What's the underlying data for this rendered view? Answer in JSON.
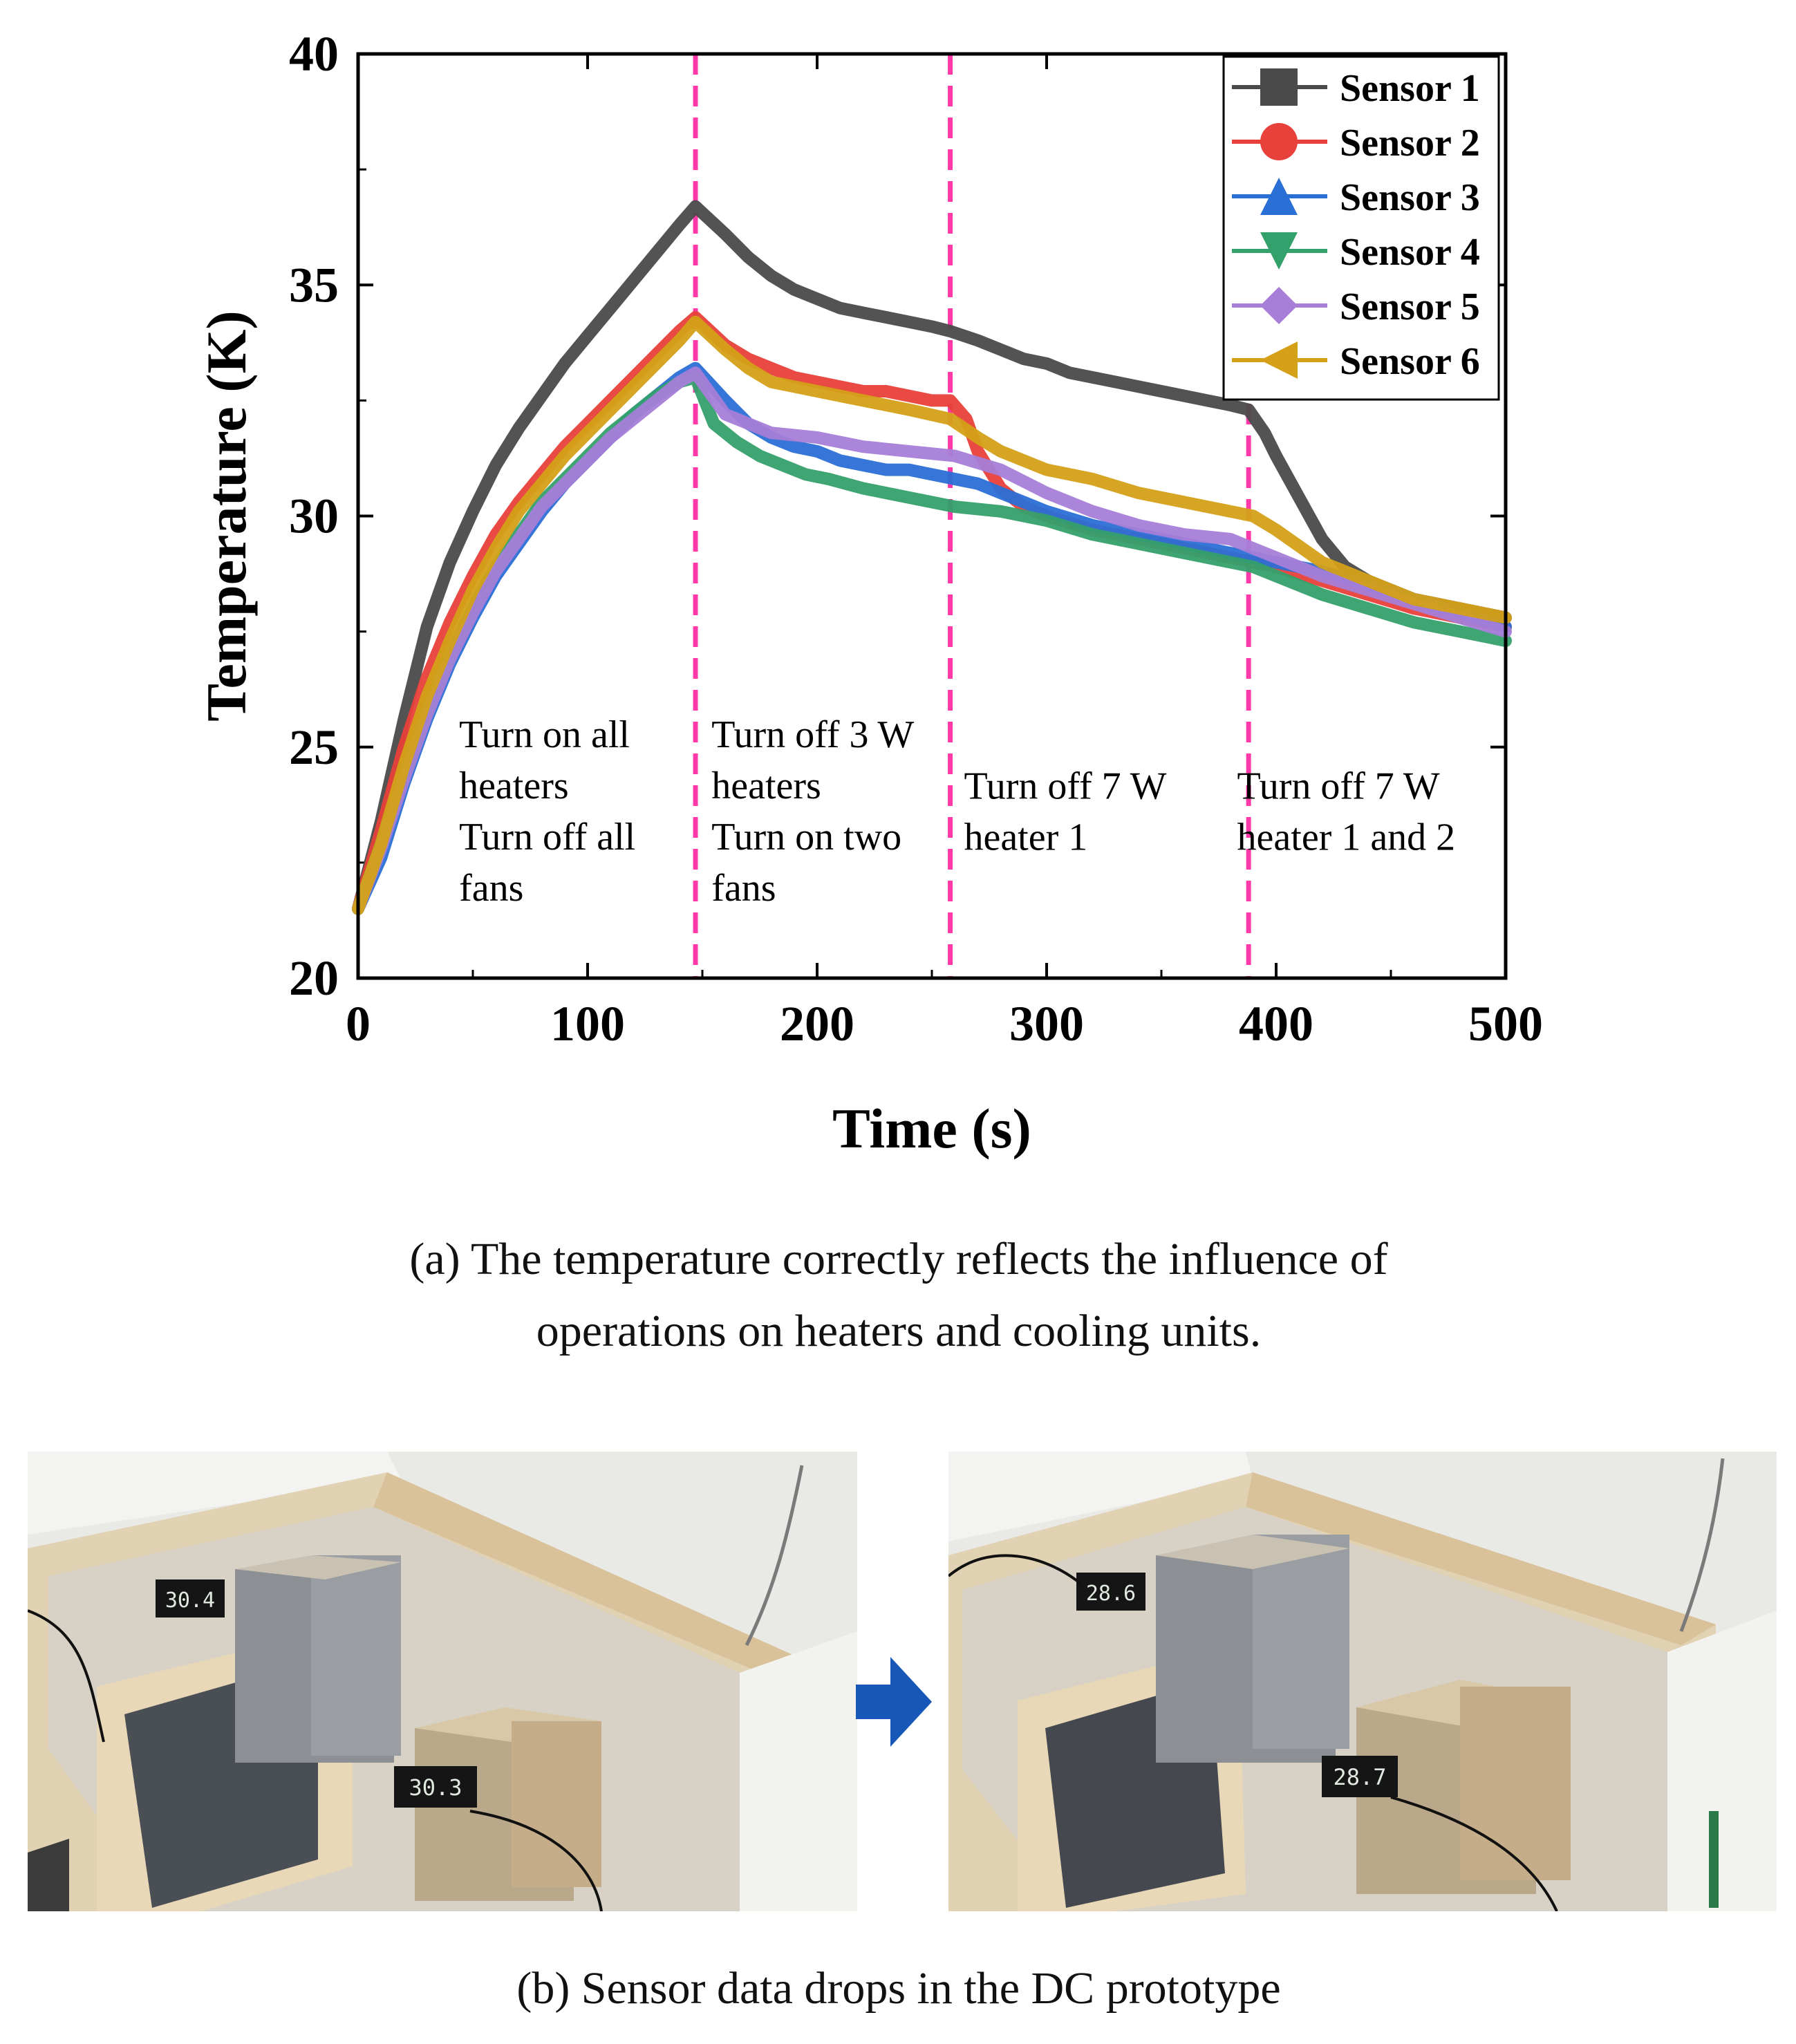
{
  "chart_data": {
    "type": "line",
    "xlabel": "Time (s)",
    "ylabel": "Temperature (K)",
    "xlim": [
      0,
      500
    ],
    "ylim": [
      20,
      40
    ],
    "xticks": [
      0,
      100,
      200,
      300,
      400,
      500
    ],
    "yticks": [
      20,
      25,
      30,
      35,
      40
    ],
    "grid": false,
    "legend_position": "top-right",
    "series": [
      {
        "name": "Sensor 1",
        "color": "#4a4a4a",
        "marker": "square",
        "x": [
          0,
          10,
          20,
          30,
          40,
          50,
          60,
          70,
          80,
          90,
          100,
          110,
          120,
          130,
          140,
          147,
          160,
          170,
          180,
          190,
          200,
          210,
          220,
          230,
          240,
          250,
          258,
          270,
          280,
          290,
          300,
          310,
          320,
          330,
          340,
          350,
          360,
          370,
          380,
          388,
          395,
          400,
          410,
          420,
          430,
          440,
          450,
          460,
          470,
          480,
          490,
          500
        ],
        "y": [
          21.5,
          23.4,
          25.6,
          27.6,
          29.0,
          30.1,
          31.1,
          31.9,
          32.6,
          33.3,
          33.9,
          34.5,
          35.1,
          35.7,
          36.3,
          36.7,
          36.1,
          35.6,
          35.2,
          34.9,
          34.7,
          34.5,
          34.4,
          34.3,
          34.2,
          34.1,
          34.0,
          33.8,
          33.6,
          33.4,
          33.3,
          33.1,
          33.0,
          32.9,
          32.8,
          32.7,
          32.6,
          32.5,
          32.4,
          32.3,
          31.8,
          31.3,
          30.4,
          29.5,
          28.9,
          28.6,
          28.4,
          28.2,
          28.1,
          28.0,
          27.9,
          27.8
        ]
      },
      {
        "name": "Sensor 2",
        "color": "#e8403a",
        "marker": "circle",
        "x": [
          0,
          10,
          20,
          30,
          40,
          50,
          60,
          70,
          80,
          90,
          100,
          110,
          120,
          130,
          140,
          147,
          160,
          170,
          180,
          190,
          200,
          210,
          220,
          230,
          240,
          250,
          258,
          265,
          270,
          280,
          290,
          300,
          320,
          340,
          360,
          380,
          390,
          400,
          420,
          440,
          460,
          480,
          500
        ],
        "y": [
          21.5,
          23.2,
          25.0,
          26.5,
          27.7,
          28.7,
          29.6,
          30.3,
          30.9,
          31.5,
          32.0,
          32.5,
          33.0,
          33.5,
          34.0,
          34.3,
          33.7,
          33.4,
          33.2,
          33.0,
          32.9,
          32.8,
          32.7,
          32.7,
          32.6,
          32.5,
          32.5,
          32.1,
          31.4,
          30.6,
          30.2,
          30.0,
          29.7,
          29.5,
          29.3,
          29.1,
          29.0,
          28.9,
          28.6,
          28.3,
          28.0,
          27.8,
          27.6
        ]
      },
      {
        "name": "Sensor 3",
        "color": "#2a6fd6",
        "marker": "triangle-up",
        "x": [
          0,
          10,
          20,
          30,
          40,
          50,
          60,
          70,
          80,
          90,
          100,
          110,
          120,
          130,
          140,
          147,
          160,
          170,
          180,
          190,
          200,
          210,
          220,
          230,
          240,
          250,
          260,
          270,
          280,
          290,
          300,
          320,
          340,
          360,
          380,
          390,
          400,
          420,
          440,
          460,
          480,
          500
        ],
        "y": [
          21.5,
          22.6,
          24.2,
          25.6,
          26.8,
          27.8,
          28.7,
          29.4,
          30.1,
          30.7,
          31.2,
          31.7,
          32.2,
          32.6,
          33.0,
          33.2,
          32.5,
          32.0,
          31.7,
          31.5,
          31.4,
          31.2,
          31.1,
          31.0,
          31.0,
          30.9,
          30.8,
          30.7,
          30.5,
          30.3,
          30.1,
          29.8,
          29.6,
          29.4,
          29.2,
          29.1,
          29.0,
          28.8,
          28.5,
          28.2,
          27.9,
          27.6
        ]
      },
      {
        "name": "Sensor 4",
        "color": "#34a06b",
        "marker": "triangle-down",
        "x": [
          0,
          10,
          20,
          30,
          40,
          50,
          60,
          70,
          80,
          90,
          100,
          110,
          120,
          130,
          140,
          147,
          155,
          165,
          175,
          185,
          195,
          205,
          220,
          240,
          260,
          280,
          300,
          320,
          340,
          360,
          380,
          390,
          400,
          420,
          440,
          460,
          480,
          500
        ],
        "y": [
          21.5,
          22.9,
          24.4,
          25.8,
          27.0,
          28.0,
          28.9,
          29.6,
          30.3,
          30.8,
          31.3,
          31.8,
          32.2,
          32.6,
          32.9,
          33.0,
          32.0,
          31.6,
          31.3,
          31.1,
          30.9,
          30.8,
          30.6,
          30.4,
          30.2,
          30.1,
          29.9,
          29.6,
          29.4,
          29.2,
          29.0,
          28.9,
          28.7,
          28.3,
          28.0,
          27.7,
          27.5,
          27.3
        ]
      },
      {
        "name": "Sensor 5",
        "color": "#a77ed8",
        "marker": "diamond",
        "x": [
          0,
          10,
          20,
          30,
          40,
          50,
          60,
          70,
          80,
          90,
          100,
          110,
          120,
          130,
          140,
          147,
          160,
          170,
          180,
          200,
          220,
          240,
          260,
          280,
          300,
          320,
          340,
          360,
          380,
          390,
          400,
          420,
          440,
          460,
          480,
          500
        ],
        "y": [
          21.5,
          22.8,
          24.3,
          25.7,
          26.9,
          27.9,
          28.8,
          29.5,
          30.2,
          30.7,
          31.2,
          31.7,
          32.1,
          32.5,
          32.9,
          33.1,
          32.2,
          32.0,
          31.8,
          31.7,
          31.5,
          31.4,
          31.3,
          31.0,
          30.5,
          30.1,
          29.8,
          29.6,
          29.5,
          29.3,
          29.1,
          28.7,
          28.4,
          28.1,
          27.8,
          27.5
        ]
      },
      {
        "name": "Sensor 6",
        "color": "#d4a017",
        "marker": "triangle-left",
        "x": [
          0,
          10,
          20,
          30,
          40,
          50,
          60,
          70,
          80,
          90,
          100,
          110,
          120,
          130,
          140,
          147,
          160,
          170,
          180,
          200,
          220,
          240,
          258,
          270,
          280,
          300,
          320,
          340,
          360,
          380,
          390,
          400,
          420,
          440,
          460,
          480,
          500
        ],
        "y": [
          21.5,
          22.9,
          24.6,
          26.1,
          27.3,
          28.4,
          29.3,
          30.1,
          30.7,
          31.3,
          31.8,
          32.3,
          32.8,
          33.3,
          33.8,
          34.2,
          33.6,
          33.2,
          32.9,
          32.7,
          32.5,
          32.3,
          32.1,
          31.7,
          31.4,
          31.0,
          30.8,
          30.5,
          30.3,
          30.1,
          30.0,
          29.7,
          29.0,
          28.6,
          28.2,
          28.0,
          27.8
        ]
      }
    ],
    "event_lines": [
      147,
      258,
      388
    ],
    "annotations": [
      {
        "lines": [
          "Turn on all",
          "heaters",
          "Turn off all",
          "fans"
        ],
        "x": 44,
        "y": 25.0
      },
      {
        "lines": [
          "Turn off 3 W",
          "heaters",
          "Turn on two",
          "fans"
        ],
        "x": 154,
        "y": 25.0
      },
      {
        "lines": [
          "Turn off  7 W",
          "heater 1"
        ],
        "x": 264,
        "y": 23.88
      },
      {
        "lines": [
          "Turn off 7 W",
          "heater 1 and 2"
        ],
        "x": 383,
        "y": 23.88
      }
    ]
  },
  "captions": {
    "a_line1": "(a) The temperature correctly reflects the influence of",
    "a_line2": "operations on heaters and cooling units.",
    "b": "(b) Sensor data drops in the DC prototype"
  },
  "photos": {
    "left_readings": [
      "30.4",
      "30.3"
    ],
    "right_readings": [
      "28.6",
      "28.7"
    ]
  },
  "colors": {
    "event_line": "#ff3aa8",
    "arrow": "#1657b8"
  }
}
